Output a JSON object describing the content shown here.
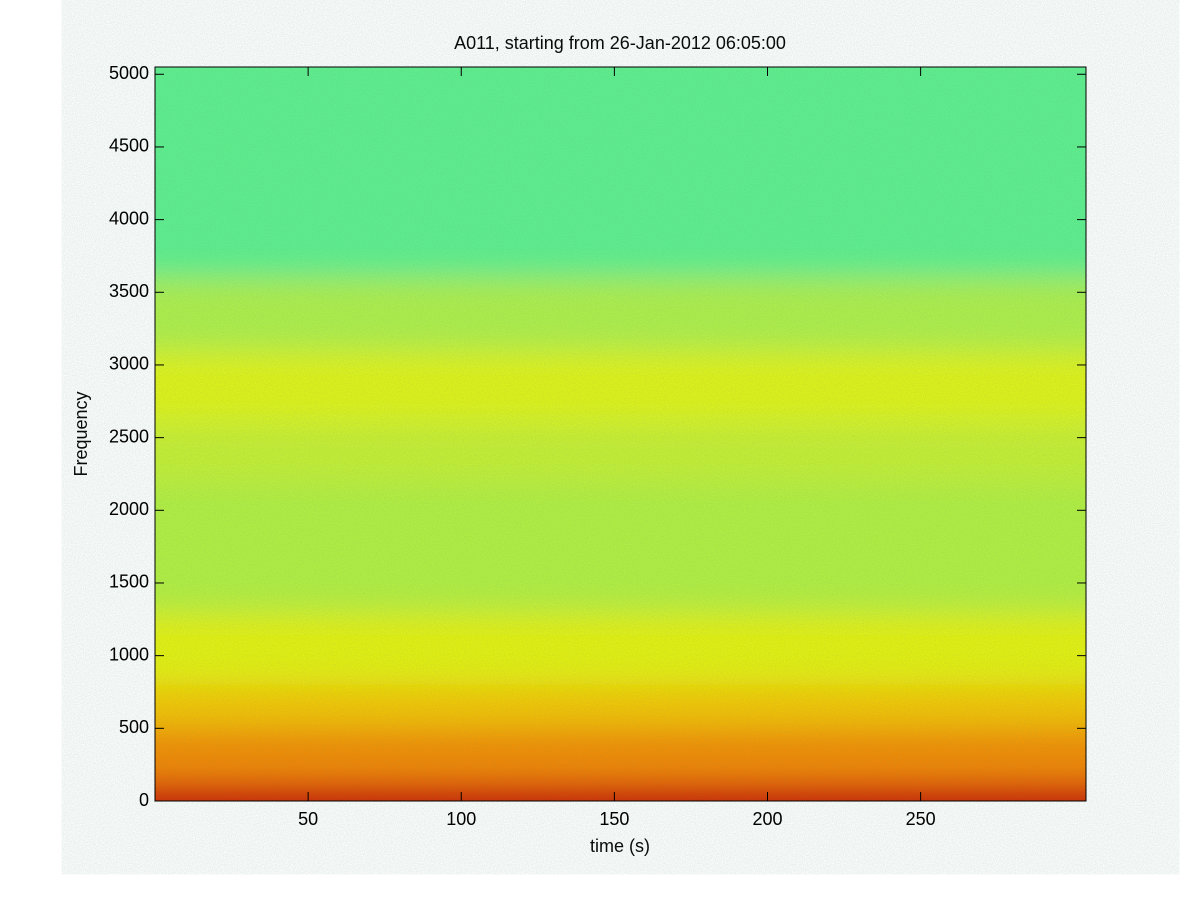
{
  "chart_data": {
    "type": "spectrogram",
    "title": "A011, starting from 26-Jan-2012 06:05:00",
    "xlabel": "time (s)",
    "ylabel": "Frequency",
    "xlim": [
      0,
      304
    ],
    "xticks": [
      50,
      100,
      150,
      200,
      250
    ],
    "ylim": [
      0,
      5050
    ],
    "yticks": [
      0,
      500,
      1000,
      1500,
      2000,
      2500,
      3000,
      3500,
      4000,
      4500,
      5000
    ],
    "y_bins": [
      0,
      60,
      150,
      500,
      800,
      1300,
      2200,
      2600,
      3100,
      3600,
      5050
    ],
    "colors": [
      "#c81000",
      "#e83a00",
      "#f58a00",
      "#f7c400",
      "#e6f20a",
      "#b4f040",
      "#c8f030",
      "#e2f414",
      "#b0f048",
      "#5ef08e"
    ]
  }
}
